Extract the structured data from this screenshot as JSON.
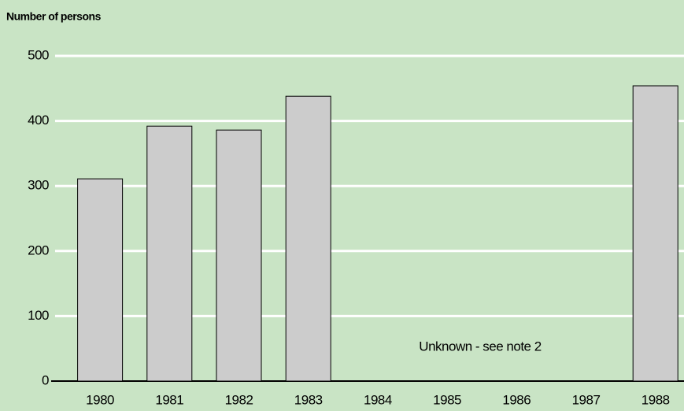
{
  "chart_data": {
    "type": "bar",
    "y_axis_label": "Number of persons",
    "categories": [
      "1980",
      "1981",
      "1982",
      "1983",
      "1984",
      "1985",
      "1986",
      "1987",
      "1988"
    ],
    "values": [
      311,
      392,
      386,
      438,
      null,
      null,
      null,
      null,
      454
    ],
    "color": "#cccccc",
    "annotation": "Unknown - see note 2",
    "ylim": [
      0,
      500
    ],
    "yticks": [
      0,
      100,
      200,
      300,
      400,
      500
    ],
    "grid": true
  }
}
